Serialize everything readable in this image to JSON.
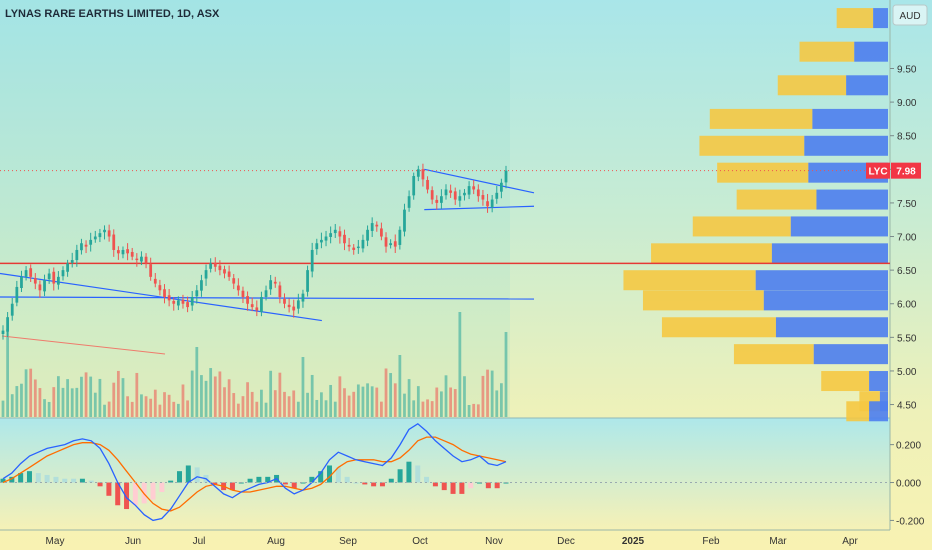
{
  "header": {
    "title": "LYNAS RARE EARTHS LIMITED, 1D, ASX",
    "currency": "AUD"
  },
  "price_tag": {
    "ticker": "LYC",
    "price": "7.98",
    "value": 7.98,
    "color": "#f23645"
  },
  "colors": {
    "up": "#26a69a",
    "down": "#ef5350",
    "vp_yellow": "#f5c842",
    "vp_blue": "#4f80ee",
    "support_line": "#e53935",
    "trend_line": "#2962ff",
    "macd": "#2962ff",
    "signal": "#ff6d00"
  },
  "chart_data": [
    {
      "type": "candlestick",
      "title": "LYNAS RARE EARTHS LIMITED, 1D, ASX",
      "y_axis_ticks": [
        "9.50",
        "9.00",
        "8.50",
        "8.00",
        "7.50",
        "7.00",
        "6.50",
        "6.00",
        "5.50",
        "5.00",
        "4.50"
      ],
      "ylim": [
        4.3,
        10.4
      ],
      "x_axis_ticks": [
        "May",
        "Jun",
        "Jul",
        "Aug",
        "Sep",
        "Oct",
        "Nov",
        "Dec",
        "2025",
        "Feb",
        "Mar",
        "Apr"
      ],
      "last_price": 7.98,
      "horizontal_line": 6.6,
      "trend_lines": [
        {
          "from": [
            "2024-04-10",
            6.45
          ],
          "to": [
            "2024-08-20",
            5.75
          ]
        },
        {
          "from": [
            "2024-04-10",
            6.1
          ],
          "to": [
            "2024-11-15",
            6.07
          ]
        },
        {
          "from": [
            "2024-10-01",
            8.0
          ],
          "to": [
            "2024-11-15",
            7.65
          ]
        },
        {
          "from": [
            "2024-10-01",
            7.4
          ],
          "to": [
            "2024-11-15",
            7.45
          ]
        }
      ],
      "closes": [
        5.6,
        5.8,
        6.0,
        6.25,
        6.4,
        6.5,
        6.4,
        6.3,
        6.2,
        6.35,
        6.45,
        6.3,
        6.4,
        6.5,
        6.6,
        6.65,
        6.8,
        6.9,
        6.85,
        6.95,
        7.0,
        7.05,
        7.1,
        7.0,
        6.8,
        6.75,
        6.8,
        6.75,
        6.7,
        6.65,
        6.7,
        6.6,
        6.4,
        6.3,
        6.2,
        6.1,
        6.05,
        6.0,
        6.05,
        6.0,
        5.95,
        6.1,
        6.2,
        6.35,
        6.5,
        6.6,
        6.55,
        6.5,
        6.45,
        6.4,
        6.3,
        6.2,
        6.1,
        6.0,
        5.95,
        5.9,
        6.1,
        6.2,
        6.35,
        6.3,
        6.1,
        6.0,
        5.95,
        5.9,
        6.05,
        6.15,
        6.5,
        6.8,
        6.9,
        6.95,
        7.0,
        7.05,
        7.1,
        7.0,
        6.9,
        6.85,
        6.8,
        6.85,
        6.95,
        7.1,
        7.2,
        7.15,
        7.0,
        6.85,
        6.9,
        6.85,
        7.1,
        7.4,
        7.6,
        7.9,
        8.0,
        7.85,
        7.7,
        7.55,
        7.5,
        7.6,
        7.7,
        7.65,
        7.55,
        7.6,
        7.65,
        7.75,
        7.7,
        7.6,
        7.55,
        7.45,
        7.55,
        7.65,
        7.8,
        7.98
      ],
      "volume_profile": [
        {
          "price": 10.25,
          "yellow": 0.16,
          "blue": 0.11
        },
        {
          "price": 9.75,
          "yellow": 0.24,
          "blue": 0.25
        },
        {
          "price": 9.25,
          "yellow": 0.3,
          "blue": 0.31
        },
        {
          "price": 8.75,
          "yellow": 0.45,
          "blue": 0.56
        },
        {
          "price": 8.35,
          "yellow": 0.46,
          "blue": 0.62
        },
        {
          "price": 7.95,
          "yellow": 0.4,
          "blue": 0.59
        },
        {
          "price": 7.55,
          "yellow": 0.35,
          "blue": 0.53
        },
        {
          "price": 7.15,
          "yellow": 0.43,
          "blue": 0.72
        },
        {
          "price": 6.75,
          "yellow": 0.53,
          "blue": 0.86
        },
        {
          "price": 6.35,
          "yellow": 0.58,
          "blue": 0.98
        },
        {
          "price": 6.05,
          "yellow": 0.53,
          "blue": 0.92
        },
        {
          "price": 5.65,
          "yellow": 0.5,
          "blue": 0.83
        },
        {
          "price": 5.25,
          "yellow": 0.35,
          "blue": 0.55
        },
        {
          "price": 4.85,
          "yellow": 0.21,
          "blue": 0.14
        },
        {
          "price": 4.55,
          "yellow": 0.09,
          "blue": 0.06
        },
        {
          "price": 4.4,
          "yellow": 0.1,
          "blue": 0.14
        }
      ]
    },
    {
      "type": "line",
      "y_axis_ticks": [
        "0.200",
        "0.000",
        "-0.200"
      ],
      "ylim": [
        -0.24,
        0.33
      ],
      "series": [
        {
          "values": [
            0.02,
            0.05,
            0.1,
            0.14,
            0.16,
            0.18,
            0.19,
            0.2,
            0.22,
            0.23,
            0.22,
            0.18,
            0.1,
            0.0,
            -0.08,
            -0.12,
            -0.17,
            -0.2,
            -0.19,
            -0.14,
            -0.07,
            0.0,
            0.03,
            0.02,
            -0.02,
            -0.06,
            -0.08,
            -0.05,
            -0.03,
            -0.01,
            0.0,
            0.02,
            -0.03,
            -0.06,
            -0.04,
            0.0,
            0.05,
            0.12,
            0.16,
            0.14,
            0.12,
            0.11,
            0.1,
            0.09,
            0.13,
            0.2,
            0.28,
            0.31,
            0.27,
            0.22,
            0.18,
            0.14,
            0.11,
            0.12,
            0.14,
            0.1,
            0.09,
            0.11
          ]
        },
        {
          "values": [
            0.0,
            0.02,
            0.05,
            0.08,
            0.11,
            0.14,
            0.16,
            0.18,
            0.2,
            0.21,
            0.21,
            0.2,
            0.17,
            0.12,
            0.06,
            0.0,
            -0.06,
            -0.11,
            -0.14,
            -0.15,
            -0.13,
            -0.09,
            -0.05,
            -0.02,
            -0.01,
            -0.02,
            -0.04,
            -0.05,
            -0.05,
            -0.04,
            -0.03,
            -0.02,
            -0.02,
            -0.03,
            -0.04,
            -0.03,
            -0.01,
            0.03,
            0.08,
            0.11,
            0.12,
            0.12,
            0.12,
            0.11,
            0.11,
            0.13,
            0.17,
            0.22,
            0.24,
            0.24,
            0.22,
            0.2,
            0.17,
            0.15,
            0.14,
            0.13,
            0.12,
            0.11
          ]
        }
      ]
    }
  ]
}
